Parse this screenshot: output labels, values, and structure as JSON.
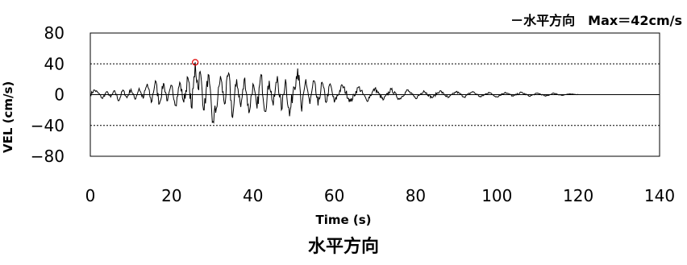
{
  "chart_data": {
    "type": "line",
    "legend": {
      "series_name": "水平方向",
      "max_label": "Max＝42cm/s",
      "placement": "top-right"
    },
    "caption": "水平方向",
    "xlabel": "Time (s)",
    "ylabel": "VEL (cm/s)",
    "xlim": [
      0,
      140
    ],
    "ylim": [
      -80,
      80
    ],
    "x_ticks": [
      "0",
      "20",
      "40",
      "60",
      "80",
      "100",
      "120",
      "140"
    ],
    "y_ticks": [
      "80",
      "40",
      "0",
      "−40",
      "−80"
    ],
    "grid": "horizontal dashed",
    "max_point": {
      "x": 25.8,
      "y": 42
    },
    "series": [
      {
        "name": "水平方向",
        "x": [
          0,
          1,
          2,
          3,
          4,
          5,
          6,
          7,
          8,
          9,
          10,
          11,
          12,
          13,
          14,
          15,
          16,
          17,
          18,
          19,
          20,
          21,
          22,
          23,
          24,
          25,
          25.8,
          26.5,
          27,
          28,
          29,
          30,
          31,
          32,
          33,
          34,
          35,
          36,
          37,
          38,
          39,
          40,
          41,
          42,
          43,
          44,
          45,
          46,
          47,
          48,
          49,
          50,
          51,
          52,
          53,
          54,
          55,
          56,
          57,
          58,
          59,
          60,
          62,
          64,
          66,
          68,
          70,
          72,
          74,
          76,
          78,
          80,
          82,
          84,
          86,
          88,
          90,
          92,
          94,
          96,
          98,
          100,
          102,
          104,
          106,
          108,
          110,
          112,
          114,
          116,
          118,
          120,
          121
        ],
        "y": [
          0,
          6,
          2,
          -5,
          4,
          -3,
          5,
          -8,
          6,
          -4,
          7,
          -6,
          8,
          -5,
          14,
          -10,
          18,
          -12,
          15,
          -8,
          12,
          -14,
          16,
          -10,
          22,
          -18,
          42,
          8,
          30,
          -20,
          26,
          -36,
          -18,
          24,
          -12,
          28,
          -30,
          20,
          -16,
          22,
          -24,
          14,
          -18,
          26,
          -22,
          18,
          -14,
          24,
          -20,
          20,
          -28,
          10,
          34,
          -22,
          20,
          -12,
          18,
          -14,
          16,
          -10,
          14,
          -10,
          12,
          -9,
          10,
          -8,
          8,
          -7,
          7,
          -6,
          6,
          -5,
          5,
          -4,
          5,
          -4,
          4,
          -3,
          4,
          -3,
          3,
          -3,
          3,
          -2,
          3,
          -2,
          2,
          -2,
          2,
          -1,
          1,
          0,
          0
        ]
      }
    ]
  }
}
